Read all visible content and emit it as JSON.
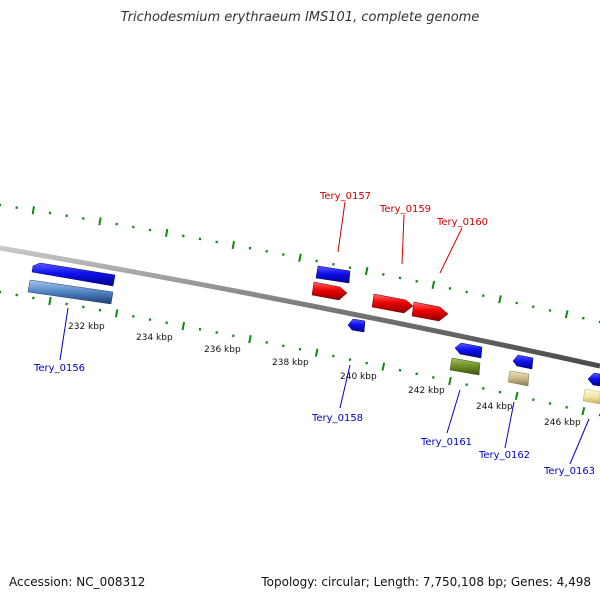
{
  "title": "Trichodesmium erythraeum IMS101, complete genome",
  "footer": {
    "accession": "Accession: NC_008312",
    "summary": "Topology: circular; Length: 7,750,108 bp; Genes: 4,498"
  },
  "colors": {
    "forward_label": "#cc0000",
    "reverse_label": "#0000cc",
    "tick": "#118811",
    "backbone": "#808080"
  },
  "kbp_labels": [
    "232 kbp",
    "234 kbp",
    "236 kbp",
    "238 kbp",
    "240 kbp",
    "242 kbp",
    "244 kbp",
    "246 kbp"
  ],
  "gene_labels": {
    "forward": [
      "Tery_0157",
      "Tery_0159",
      "Tery_0160"
    ],
    "reverse": [
      "Tery_0156",
      "Tery_0158",
      "Tery_0161",
      "Tery_0162",
      "Tery_0163"
    ]
  }
}
